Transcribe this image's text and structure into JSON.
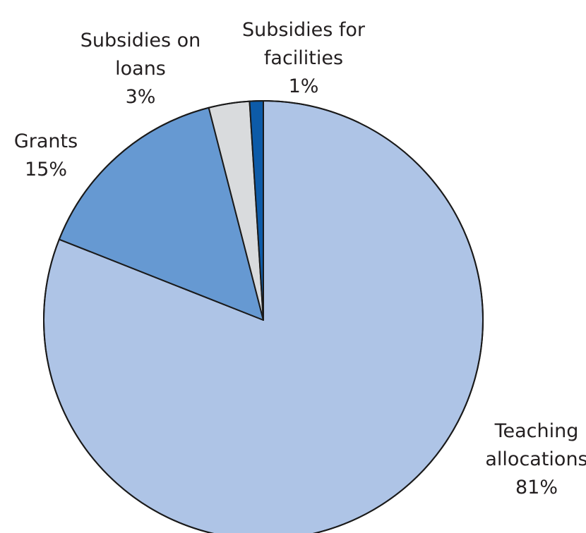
{
  "chart_data": {
    "type": "pie",
    "slices": [
      {
        "name": "Teaching allocations",
        "label_lines": [
          "Teaching",
          "allocations"
        ],
        "percent_label": "81%",
        "value": 81,
        "color": "#aec4e6"
      },
      {
        "name": "Grants",
        "label_lines": [
          "Grants"
        ],
        "percent_label": "15%",
        "value": 15,
        "color": "#6699d2"
      },
      {
        "name": "Subsidies on loans",
        "label_lines": [
          "Subsidies on",
          "loans"
        ],
        "percent_label": "3%",
        "value": 3,
        "color": "#d9dbdd"
      },
      {
        "name": "Subsidies for facilities",
        "label_lines": [
          "Subsidies for",
          "facilities"
        ],
        "percent_label": "1%",
        "value": 1,
        "color": "#0d5ba8"
      }
    ],
    "start": "12 o'clock",
    "direction": "clockwise"
  }
}
